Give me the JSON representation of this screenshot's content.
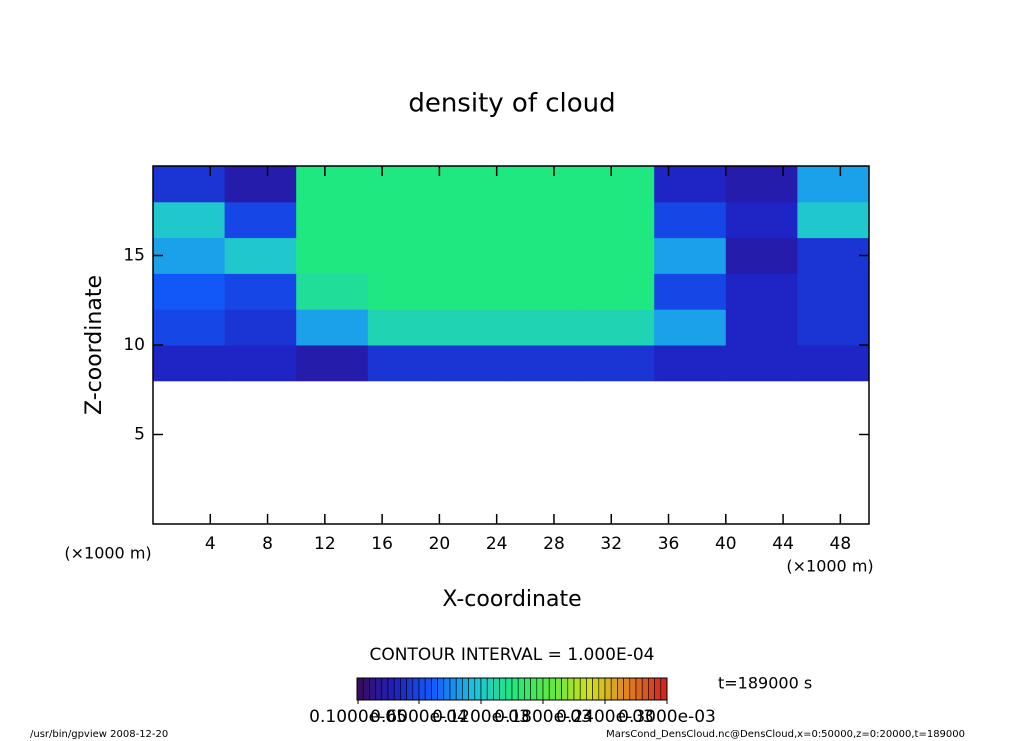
{
  "chart_data": {
    "type": "heatmap",
    "title": "density of cloud",
    "x_label": "X-coordinate",
    "y_label": "Z-coordinate",
    "x_unit_left": "(×1000 m)",
    "x_unit_right": "(×1000 m)",
    "contour_note": "CONTOUR INTERVAL = 1.000E-04",
    "time_note": "t=189000 s",
    "footer_left": "/usr/bin/gpview  2008-12-20",
    "footer_right": "MarsCond_DensCloud.nc@DensCloud,x=0:50000,z=0:20000,t=189000",
    "xlim": [
      0,
      50
    ],
    "xticks": [
      4,
      8,
      12,
      16,
      20,
      24,
      28,
      32,
      36,
      40,
      44,
      48
    ],
    "ylim": [
      0,
      20
    ],
    "yticks": [
      5,
      10,
      15
    ],
    "xbins": [
      0,
      5,
      10,
      15,
      20,
      25,
      30,
      35,
      40,
      45,
      50
    ],
    "ybins": [
      0,
      2,
      4,
      6,
      8,
      10,
      12,
      14,
      16,
      18,
      20
    ],
    "values": [
      [
        null,
        null,
        null,
        null,
        null,
        null,
        null,
        null,
        null,
        null
      ],
      [
        null,
        null,
        null,
        null,
        null,
        null,
        null,
        null,
        null,
        null
      ],
      [
        null,
        null,
        null,
        null,
        null,
        null,
        null,
        null,
        null,
        null
      ],
      [
        null,
        null,
        null,
        null,
        null,
        null,
        null,
        null,
        null,
        null
      ],
      [
        4e-05,
        4e-05,
        3e-05,
        5e-05,
        5e-05,
        5e-05,
        5e-05,
        4e-05,
        4e-05,
        4e-05
      ],
      [
        6e-05,
        5e-05,
        0.0001,
        0.00013,
        0.00013,
        0.00013,
        0.00013,
        0.0001,
        4e-05,
        5e-05
      ],
      [
        7e-05,
        6e-05,
        0.00014,
        0.00015,
        0.00015,
        0.00015,
        0.00015,
        6e-05,
        4e-05,
        5e-05
      ],
      [
        0.0001,
        0.00012,
        0.00015,
        0.00015,
        0.00015,
        0.00015,
        0.00015,
        0.0001,
        3e-05,
        5e-05
      ],
      [
        0.00012,
        6e-05,
        0.00015,
        0.00015,
        0.00015,
        0.00015,
        0.00015,
        6e-05,
        4e-05,
        0.00012
      ],
      [
        5e-05,
        3e-05,
        0.00015,
        0.00015,
        0.00015,
        0.00015,
        0.00015,
        4e-05,
        3e-05,
        0.0001
      ]
    ],
    "clim": [
      0,
      0.0003
    ],
    "colorscale": [
      "#3a0a5a",
      "#2020c0",
      "#1060ff",
      "#20c0e0",
      "#20e880",
      "#60e840",
      "#d0e020",
      "#e08020",
      "#d02020"
    ],
    "colorbar_ticks": [
      {
        "value": 1e-06,
        "label": "0.1000e-05"
      },
      {
        "value": 6e-05,
        "label": "0.6000e-04"
      },
      {
        "value": 0.00012,
        "label": "0.1200e-03"
      },
      {
        "value": 0.00018,
        "label": "0.1800e-03"
      },
      {
        "value": 0.00024,
        "label": "0.2400e-03"
      },
      {
        "value": 0.0003,
        "label": "0.3000e-03"
      }
    ]
  }
}
